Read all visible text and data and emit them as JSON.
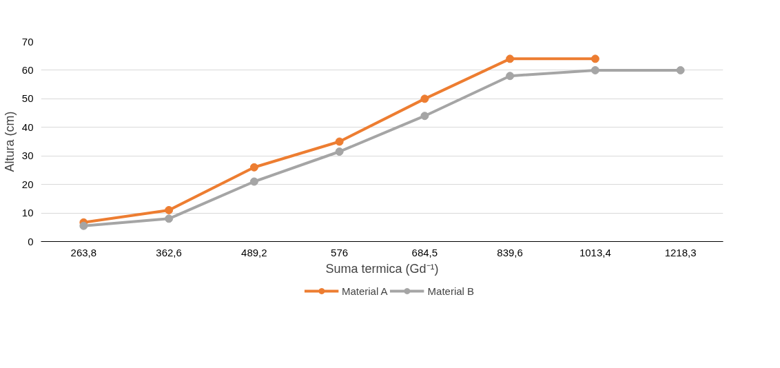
{
  "chart_data": {
    "type": "line",
    "xlabel": "Suma termica (Gd⁻¹)",
    "ylabel": "Altura (cm)",
    "categories": [
      "263,8",
      "362,6",
      "489,2",
      "576",
      "684,5",
      "839,6",
      "1013,4",
      "1218,3"
    ],
    "series": [
      {
        "name": "Material A",
        "color": "#ed7d31",
        "values": [
          6.7,
          11,
          26,
          35,
          50,
          64,
          64,
          null
        ]
      },
      {
        "name": "Material B",
        "color": "#a5a5a5",
        "values": [
          5.5,
          8,
          21,
          31.5,
          44,
          58,
          60,
          60
        ]
      }
    ],
    "ylim": [
      0,
      70
    ],
    "yticks": [
      0,
      10,
      20,
      30,
      40,
      50,
      60,
      70
    ],
    "grid": "y",
    "legend": "bottom",
    "marker": "circle",
    "line_style": "solid"
  }
}
